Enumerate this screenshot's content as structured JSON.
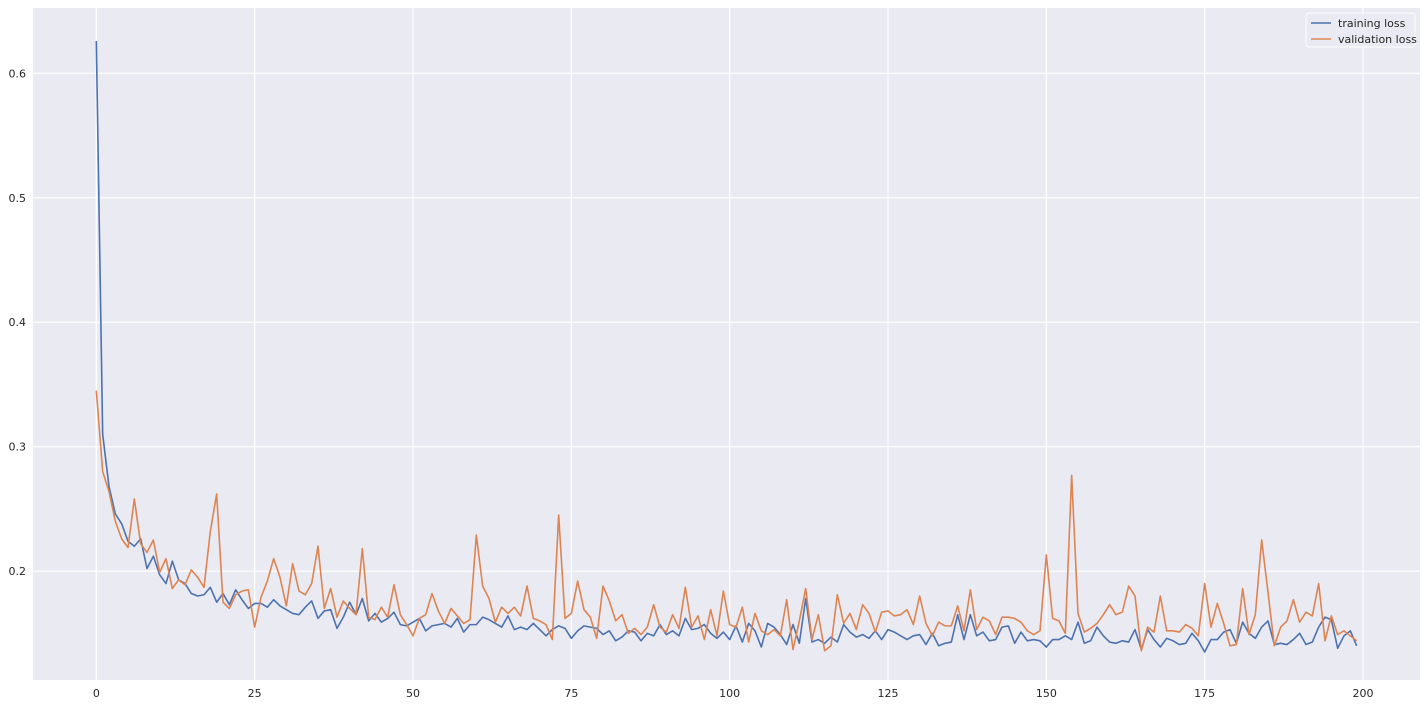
{
  "chart_data": {
    "type": "line",
    "title": "",
    "xlabel": "",
    "ylabel": "",
    "xlim": [
      -10,
      209
    ],
    "ylim": [
      0.1125,
      0.6525
    ],
    "xticks": [
      0,
      25,
      50,
      75,
      100,
      125,
      150,
      175,
      200
    ],
    "yticks": [
      0.2,
      0.3,
      0.4,
      0.5,
      0.6
    ],
    "xtick_labels": [
      "0",
      "25",
      "50",
      "75",
      "100",
      "125",
      "150",
      "175",
      "200"
    ],
    "ytick_labels": [
      "0.2",
      "0.3",
      "0.4",
      "0.5",
      "0.6"
    ],
    "grid": true,
    "legend_position": "top-right",
    "x_range_note": "epochs 0..199",
    "series": [
      {
        "name": "training loss",
        "color": "#4c72b0",
        "values": [
          0.626,
          0.31,
          0.268,
          0.246,
          0.238,
          0.224,
          0.22,
          0.226,
          0.202,
          0.212,
          0.197,
          0.19,
          0.208,
          0.193,
          0.19,
          0.182,
          0.18,
          0.181,
          0.187,
          0.175,
          0.182,
          0.173,
          0.185,
          0.177,
          0.17,
          0.174,
          0.174,
          0.171,
          0.177,
          0.172,
          0.169,
          0.166,
          0.165,
          0.171,
          0.176,
          0.162,
          0.168,
          0.169,
          0.154,
          0.163,
          0.175,
          0.165,
          0.178,
          0.16,
          0.166,
          0.159,
          0.162,
          0.167,
          0.157,
          0.156,
          0.159,
          0.162,
          0.152,
          0.156,
          0.157,
          0.158,
          0.155,
          0.162,
          0.151,
          0.157,
          0.157,
          0.163,
          0.161,
          0.158,
          0.155,
          0.164,
          0.153,
          0.155,
          0.153,
          0.158,
          0.153,
          0.148,
          0.153,
          0.156,
          0.154,
          0.146,
          0.152,
          0.156,
          0.155,
          0.154,
          0.149,
          0.152,
          0.144,
          0.147,
          0.152,
          0.151,
          0.144,
          0.15,
          0.148,
          0.157,
          0.149,
          0.152,
          0.148,
          0.162,
          0.153,
          0.154,
          0.157,
          0.15,
          0.146,
          0.151,
          0.145,
          0.156,
          0.143,
          0.158,
          0.152,
          0.139,
          0.158,
          0.155,
          0.149,
          0.141,
          0.157,
          0.142,
          0.178,
          0.143,
          0.145,
          0.142,
          0.147,
          0.143,
          0.157,
          0.151,
          0.147,
          0.149,
          0.146,
          0.152,
          0.145,
          0.153,
          0.151,
          0.148,
          0.145,
          0.148,
          0.149,
          0.141,
          0.15,
          0.14,
          0.142,
          0.143,
          0.165,
          0.145,
          0.165,
          0.148,
          0.151,
          0.144,
          0.145,
          0.155,
          0.156,
          0.142,
          0.151,
          0.144,
          0.145,
          0.144,
          0.139,
          0.145,
          0.145,
          0.148,
          0.145,
          0.159,
          0.142,
          0.144,
          0.155,
          0.148,
          0.143,
          0.142,
          0.144,
          0.143,
          0.153,
          0.137,
          0.153,
          0.145,
          0.139,
          0.146,
          0.144,
          0.141,
          0.142,
          0.15,
          0.144,
          0.135,
          0.145,
          0.145,
          0.151,
          0.153,
          0.142,
          0.159,
          0.15,
          0.146,
          0.155,
          0.16,
          0.141,
          0.142,
          0.141,
          0.145,
          0.15,
          0.141,
          0.143,
          0.155,
          0.163,
          0.161,
          0.138,
          0.148,
          0.152,
          0.14
        ]
      },
      {
        "name": "validation loss",
        "color": "#dd8452",
        "values": [
          0.345,
          0.28,
          0.264,
          0.24,
          0.226,
          0.219,
          0.258,
          0.222,
          0.215,
          0.225,
          0.199,
          0.21,
          0.186,
          0.193,
          0.189,
          0.201,
          0.195,
          0.187,
          0.232,
          0.262,
          0.175,
          0.17,
          0.181,
          0.184,
          0.185,
          0.155,
          0.179,
          0.192,
          0.21,
          0.195,
          0.172,
          0.206,
          0.184,
          0.181,
          0.19,
          0.22,
          0.17,
          0.186,
          0.163,
          0.176,
          0.17,
          0.165,
          0.218,
          0.163,
          0.161,
          0.171,
          0.163,
          0.189,
          0.165,
          0.157,
          0.148,
          0.162,
          0.165,
          0.182,
          0.168,
          0.158,
          0.17,
          0.164,
          0.158,
          0.161,
          0.229,
          0.188,
          0.178,
          0.159,
          0.171,
          0.166,
          0.171,
          0.164,
          0.188,
          0.162,
          0.16,
          0.157,
          0.145,
          0.245,
          0.162,
          0.166,
          0.192,
          0.169,
          0.163,
          0.146,
          0.188,
          0.176,
          0.16,
          0.165,
          0.15,
          0.154,
          0.149,
          0.155,
          0.173,
          0.155,
          0.151,
          0.165,
          0.154,
          0.187,
          0.155,
          0.164,
          0.145,
          0.169,
          0.148,
          0.184,
          0.157,
          0.155,
          0.171,
          0.143,
          0.166,
          0.152,
          0.149,
          0.153,
          0.148,
          0.177,
          0.137,
          0.16,
          0.186,
          0.145,
          0.165,
          0.136,
          0.14,
          0.181,
          0.158,
          0.166,
          0.153,
          0.173,
          0.166,
          0.151,
          0.167,
          0.168,
          0.164,
          0.165,
          0.169,
          0.157,
          0.18,
          0.158,
          0.148,
          0.159,
          0.156,
          0.156,
          0.172,
          0.152,
          0.185,
          0.153,
          0.163,
          0.16,
          0.149,
          0.163,
          0.163,
          0.162,
          0.159,
          0.152,
          0.149,
          0.152,
          0.213,
          0.162,
          0.16,
          0.15,
          0.277,
          0.166,
          0.151,
          0.154,
          0.158,
          0.165,
          0.173,
          0.165,
          0.167,
          0.188,
          0.18,
          0.136,
          0.155,
          0.151,
          0.18,
          0.152,
          0.152,
          0.151,
          0.157,
          0.154,
          0.148,
          0.19,
          0.155,
          0.174,
          0.158,
          0.14,
          0.141,
          0.186,
          0.149,
          0.165,
          0.225,
          0.183,
          0.14,
          0.155,
          0.16,
          0.177,
          0.159,
          0.167,
          0.164,
          0.19,
          0.144,
          0.164,
          0.149,
          0.152,
          0.148,
          0.144
        ]
      }
    ]
  }
}
